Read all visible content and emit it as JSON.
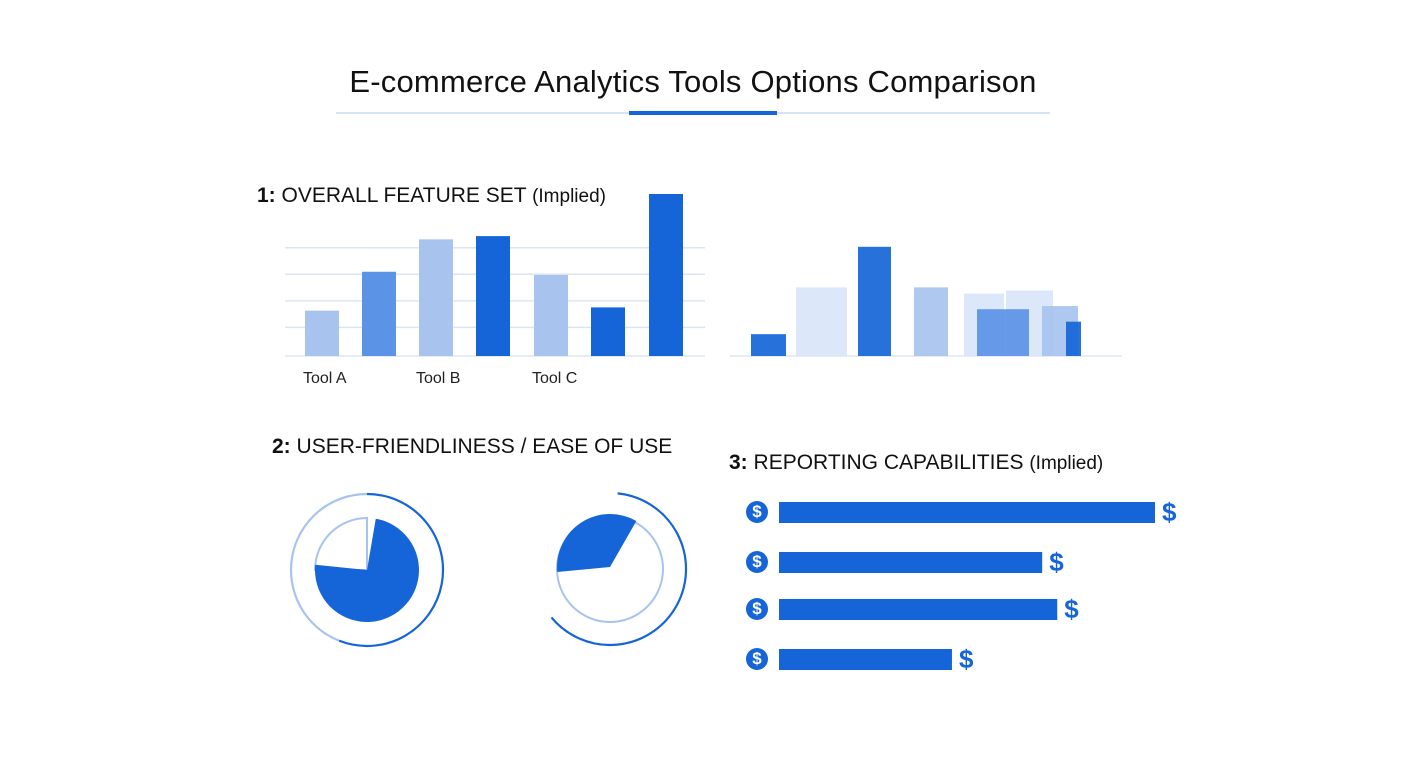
{
  "title": "E-commerce Analytics Tools Options Comparison",
  "colors": {
    "primary": "#1565d8",
    "medium": "#5b93e6",
    "light": "#a7c3ee",
    "pale": "#d9e6f8",
    "grid": "#dbe6f5"
  },
  "sections": {
    "s1": {
      "num": "1:",
      "label": "OVERALL FEATURE SET",
      "paren": "(Implied)"
    },
    "s2": {
      "num": "2:",
      "label": "USER-FRIENDLINESS / EASE OF USE",
      "paren": ""
    },
    "s3": {
      "num": "3:",
      "label": "REPORTING CAPABILITIES",
      "paren": "(Implied)"
    }
  },
  "chart_data": [
    {
      "type": "bar",
      "title": "1: OVERALL FEATURE SET (Implied)",
      "categories": [
        "Tool A",
        "Tool B",
        "Tool C"
      ],
      "ylim": [
        0,
        5
      ],
      "grid": true,
      "bars": [
        {
          "value": 1.4,
          "shade": "light"
        },
        {
          "value": 2.6,
          "shade": "medium"
        },
        {
          "value": 3.6,
          "shade": "light"
        },
        {
          "value": 3.7,
          "shade": "primary"
        },
        {
          "value": 2.5,
          "shade": "light"
        },
        {
          "value": 1.5,
          "shade": "primary"
        },
        {
          "value": 5.0,
          "shade": "primary"
        }
      ]
    },
    {
      "type": "bar",
      "title": "",
      "ylim": [
        0,
        5
      ],
      "grid": false,
      "bars": [
        {
          "value": 0.7,
          "shade": "primary"
        },
        {
          "value": 2.2,
          "shade": "pale"
        },
        {
          "value": 3.5,
          "shade": "primary"
        },
        {
          "value": 2.2,
          "shade": "light"
        },
        {
          "value": 2.0,
          "shade": "pale"
        },
        {
          "value": 2.1,
          "shade": "pale"
        },
        {
          "value": 1.5,
          "shade": "medium"
        },
        {
          "value": 1.6,
          "shade": "light"
        },
        {
          "value": 1.1,
          "shade": "primary"
        }
      ]
    },
    {
      "type": "pie",
      "title": "2: USER-FRIENDLINESS / EASE OF USE",
      "slices": [
        {
          "label": "",
          "value": 75
        },
        {
          "label": "",
          "value": 25
        }
      ]
    },
    {
      "type": "pie",
      "title": "",
      "slices": [
        {
          "label": "",
          "value": 30
        },
        {
          "label": "",
          "value": 70
        }
      ]
    },
    {
      "type": "bar",
      "orientation": "horizontal",
      "title": "3: REPORTING CAPABILITIES (Implied)",
      "icon": "dollar-icon",
      "xlim": [
        0,
        100
      ],
      "values": [
        100,
        70,
        74,
        46
      ]
    }
  ]
}
